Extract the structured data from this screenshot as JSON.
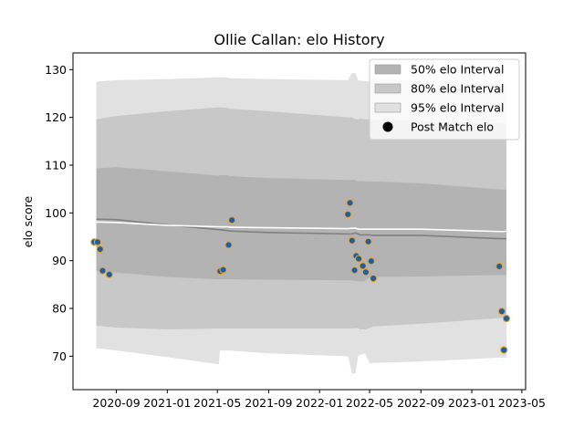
{
  "chart_data": {
    "type": "line",
    "title": "Ollie Callan: elo History",
    "xlabel": "",
    "ylabel": "elo score",
    "x_range": [
      "2020-05-20",
      "2023-05-10"
    ],
    "ylim": [
      63.0,
      133.5
    ],
    "grid": false,
    "legend_position": "top-right",
    "x_ticks": [
      "2020-09",
      "2021-01",
      "2021-05",
      "2021-09",
      "2022-01",
      "2022-05",
      "2022-09",
      "2023-01",
      "2023-05"
    ],
    "y_ticks": [
      70,
      80,
      90,
      100,
      110,
      120,
      130
    ],
    "legend": [
      {
        "label": "50% elo Interval",
        "kind": "patch",
        "color": "#b3b3b3"
      },
      {
        "label": "80% elo Interval",
        "kind": "patch",
        "color": "#c8c8c8"
      },
      {
        "label": "95% elo Interval",
        "kind": "patch",
        "color": "#e1e1e1"
      },
      {
        "label": "Post Match elo",
        "kind": "marker",
        "color": "#000000"
      }
    ],
    "bands": {
      "x": [
        "2020-07-15",
        "2020-09-01",
        "2021-01-01",
        "2021-05-05",
        "2021-05-07",
        "2021-05-25",
        "2021-06-01",
        "2021-09-01",
        "2022-03-10",
        "2022-03-20",
        "2022-03-28",
        "2022-04-04",
        "2022-04-07",
        "2022-04-20",
        "2022-05-02",
        "2022-05-08",
        "2022-09-01",
        "2023-03-10",
        "2023-03-18",
        "2023-03-25"
      ],
      "p95_upper": [
        127.5,
        127.8,
        128.0,
        128.4,
        128.4,
        128.4,
        128.2,
        128.0,
        127.8,
        129.3,
        129.3,
        127.7,
        127.7,
        127.6,
        127.5,
        128.2,
        127.6,
        127.1,
        127.1,
        127.1
      ],
      "p80_upper": [
        119.6,
        120.3,
        121.3,
        122.1,
        122.1,
        122.0,
        121.8,
        121.3,
        120.0,
        120.0,
        119.6,
        119.6,
        119.8,
        119.6,
        119.6,
        119.5,
        119.2,
        118.7,
        118.7,
        118.7
      ],
      "p50_upper": [
        109.3,
        109.6,
        108.7,
        107.8,
        107.9,
        107.9,
        107.7,
        107.3,
        106.9,
        106.9,
        106.9,
        106.6,
        106.7,
        106.6,
        106.6,
        106.6,
        106.2,
        104.9,
        104.9,
        104.9
      ],
      "median": [
        98.7,
        98.6,
        97.5,
        96.5,
        96.5,
        96.3,
        96.2,
        95.9,
        95.6,
        95.6,
        95.8,
        95.6,
        95.4,
        95.4,
        95.4,
        95.3,
        95.3,
        94.6,
        94.6,
        94.6
      ],
      "mean": [
        98.1,
        98.0,
        97.4,
        97.1,
        97.1,
        97.1,
        97.0,
        96.9,
        96.7,
        96.8,
        96.8,
        96.6,
        96.6,
        96.6,
        96.6,
        96.6,
        96.6,
        96.1,
        96.1,
        96.2
      ],
      "p50_lower": [
        87.8,
        87.5,
        86.6,
        86.1,
        86.1,
        86.1,
        86.1,
        86.0,
        85.9,
        85.9,
        85.7,
        85.7,
        85.6,
        85.7,
        86.6,
        86.6,
        86.7,
        87.0,
        87.0,
        87.0
      ],
      "p80_lower": [
        76.4,
        76.0,
        75.6,
        75.8,
        75.8,
        75.8,
        75.8,
        75.8,
        75.8,
        75.8,
        75.9,
        75.9,
        75.6,
        75.6,
        75.9,
        76.2,
        76.8,
        78.0,
        78.0,
        78.0
      ],
      "p95_lower": [
        71.7,
        71.2,
        69.8,
        68.3,
        71.2,
        71.2,
        71.2,
        70.6,
        70.0,
        66.4,
        66.4,
        70.2,
        70.2,
        70.6,
        68.4,
        68.6,
        68.9,
        69.7,
        69.7,
        69.7
      ]
    },
    "points": [
      {
        "x": "2020-07-10",
        "y": 93.9
      },
      {
        "x": "2020-07-18",
        "y": 93.9
      },
      {
        "x": "2020-07-24",
        "y": 92.4
      },
      {
        "x": "2020-07-30",
        "y": 87.9
      },
      {
        "x": "2020-08-15",
        "y": 87.1
      },
      {
        "x": "2021-05-08",
        "y": 87.8
      },
      {
        "x": "2021-05-15",
        "y": 88.1
      },
      {
        "x": "2021-05-28",
        "y": 93.3
      },
      {
        "x": "2021-06-05",
        "y": 98.5
      },
      {
        "x": "2022-03-10",
        "y": 99.7
      },
      {
        "x": "2022-03-15",
        "y": 102.1
      },
      {
        "x": "2022-03-20",
        "y": 94.2
      },
      {
        "x": "2022-03-26",
        "y": 88.0
      },
      {
        "x": "2022-03-30",
        "y": 91.0
      },
      {
        "x": "2022-04-05",
        "y": 90.4
      },
      {
        "x": "2022-04-15",
        "y": 88.9
      },
      {
        "x": "2022-04-22",
        "y": 87.6
      },
      {
        "x": "2022-04-28",
        "y": 94.0
      },
      {
        "x": "2022-05-05",
        "y": 89.9
      },
      {
        "x": "2022-05-10",
        "y": 86.3
      },
      {
        "x": "2023-03-08",
        "y": 88.8
      },
      {
        "x": "2023-03-14",
        "y": 79.4
      },
      {
        "x": "2023-03-19",
        "y": 71.3
      },
      {
        "x": "2023-03-25",
        "y": 77.9
      }
    ],
    "colors": {
      "band95": "#e1e1e1",
      "band80": "#c8c8c8",
      "band50": "#b3b3b3",
      "median_line": "#808080",
      "mean_line": "#ffffff",
      "point_fill": "#1f5f9e",
      "point_edge": "#e3a43d"
    }
  }
}
